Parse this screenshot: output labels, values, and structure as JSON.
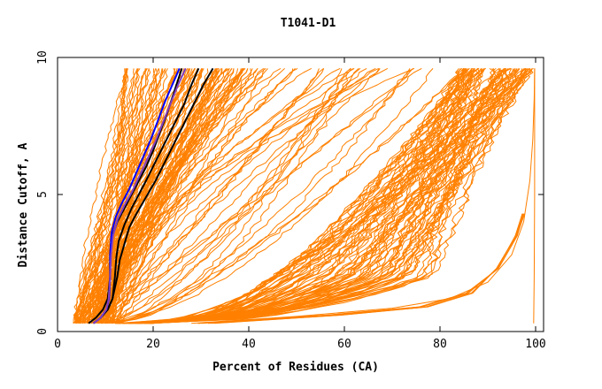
{
  "chart_data": {
    "type": "line",
    "title": "T1041-D1",
    "xlabel": "Percent of Residues (CA)",
    "ylabel": "Distance Cutoff, A",
    "xlim": [
      0,
      100
    ],
    "ylim": [
      0,
      10
    ],
    "xticks": [
      "0",
      "20",
      "40",
      "60",
      "80",
      "100"
    ],
    "yticks": [
      "0",
      "5",
      "10"
    ],
    "grid": false,
    "legend": "none",
    "colors": {
      "other_models": "#ff8000",
      "highlight_black": "#000000",
      "highlight_blue": "#0000ff",
      "highlight_purple": "#8040c0"
    },
    "highlighted_series": [
      {
        "color": "#000000",
        "x": [
          6.5,
          8,
          9.5,
          10.5,
          11,
          11,
          11.3,
          12.5,
          14,
          15.5,
          17,
          18.5,
          20,
          21.5,
          23,
          24.5,
          26
        ],
        "y": [
          0.3,
          0.5,
          0.8,
          1.2,
          2,
          2.8,
          3.4,
          4,
          4.5,
          5,
          5.5,
          6,
          6.6,
          7.3,
          8,
          8.8,
          9.6
        ]
      },
      {
        "color": "#000000",
        "x": [
          7.5,
          9,
          10.5,
          11.5,
          12,
          12.3,
          12.8,
          14,
          15.5,
          17,
          18.5,
          20.5,
          22.5,
          24.5,
          26.5,
          28,
          29.5
        ],
        "y": [
          0.3,
          0.5,
          0.8,
          1.2,
          2,
          2.7,
          3.3,
          3.9,
          4.5,
          5,
          5.5,
          6.2,
          6.9,
          7.6,
          8.3,
          9,
          9.6
        ]
      },
      {
        "color": "#000000",
        "x": [
          7.5,
          9,
          10.5,
          11.5,
          12.5,
          13,
          14,
          15,
          16.5,
          18.5,
          20.5,
          22.5,
          24.5,
          26.5,
          28.5,
          30.5,
          32.5
        ],
        "y": [
          0.3,
          0.5,
          0.8,
          1.2,
          2,
          2.6,
          3.2,
          3.8,
          4.3,
          4.9,
          5.5,
          6.2,
          6.9,
          7.6,
          8.3,
          9,
          9.6
        ]
      },
      {
        "color": "#0000ff",
        "x": [
          7.5,
          9,
          10.2,
          10.8,
          11,
          11,
          11.3,
          12.2,
          13.5,
          15,
          16.5,
          18,
          19.5,
          21,
          22.5,
          24,
          25.5
        ],
        "y": [
          0.3,
          0.5,
          0.8,
          1.2,
          2,
          2.8,
          3.6,
          4.2,
          4.7,
          5.2,
          5.8,
          6.4,
          7,
          7.7,
          8.4,
          9,
          9.6
        ]
      },
      {
        "color": "#8040c0",
        "x": [
          7.5,
          9,
          10.2,
          10.7,
          11,
          11.2,
          11.6,
          12.6,
          14,
          15.6,
          17.2,
          18.8,
          20.4,
          22,
          23.6,
          25.2,
          26.8
        ],
        "y": [
          0.3,
          0.5,
          0.8,
          1.2,
          2,
          2.8,
          3.5,
          4.1,
          4.6,
          5.1,
          5.7,
          6.3,
          6.9,
          7.6,
          8.3,
          9,
          9.6
        ]
      }
    ]
  }
}
